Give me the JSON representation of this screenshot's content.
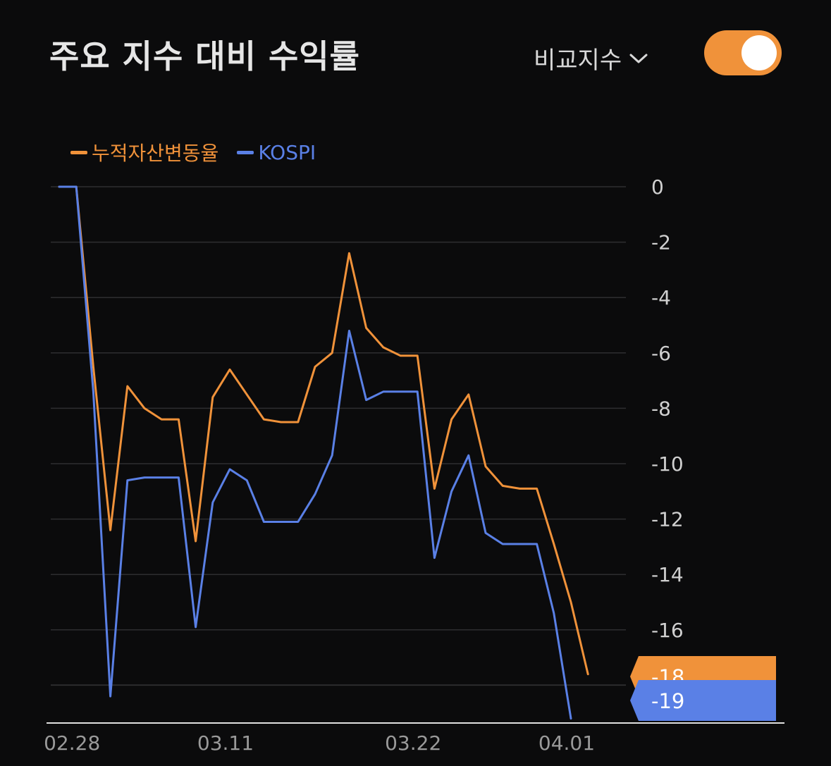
{
  "header": {
    "title": "주요 지수 대비 수익률",
    "compare_label": "비교지수",
    "toggle_on": true
  },
  "colors": {
    "background": "#0b0b0c",
    "asset": "#f0923a",
    "kospi": "#5a80e6",
    "grid": "#2e2e30"
  },
  "chart_data": {
    "type": "line",
    "xlabel": "",
    "ylabel": "",
    "ylim": [
      -19.4,
      0
    ],
    "yticks": [
      0,
      -2,
      -4,
      -6,
      -8,
      -10,
      -12,
      -14,
      -16,
      -18
    ],
    "xtick_labels": [
      "02.28",
      "03.11",
      "03.22",
      "04.01"
    ],
    "xtick_index": [
      1,
      10,
      21,
      30
    ],
    "legend_position": "top-left",
    "grid": true,
    "series": [
      {
        "name": "누적자산변동율",
        "color": "#f0923a",
        "values": [
          0,
          0,
          -6.5,
          -12.4,
          -7.2,
          -8.0,
          -8.4,
          -8.4,
          -12.8,
          -7.6,
          -6.6,
          -7.5,
          -8.4,
          -8.5,
          -8.5,
          -6.5,
          -6.0,
          -2.4,
          -5.1,
          -5.8,
          -6.1,
          -6.1,
          -10.9,
          -8.4,
          -7.5,
          -10.1,
          -10.8,
          -10.9,
          -10.9,
          -12.9,
          -15.0,
          -17.6
        ],
        "end_label": "-18"
      },
      {
        "name": "KOSPI",
        "color": "#5a80e6",
        "values": [
          0,
          0,
          -7.4,
          -18.4,
          -10.6,
          -10.5,
          -10.5,
          -10.5,
          -15.9,
          -11.4,
          -10.2,
          -10.6,
          -12.1,
          -12.1,
          -12.1,
          -11.1,
          -9.7,
          -5.2,
          -7.7,
          -7.4,
          -7.4,
          -7.4,
          -13.4,
          -11.0,
          -9.7,
          -12.5,
          -12.9,
          -12.9,
          -12.9,
          -15.4,
          -19.2
        ],
        "end_label": "-19"
      }
    ]
  }
}
